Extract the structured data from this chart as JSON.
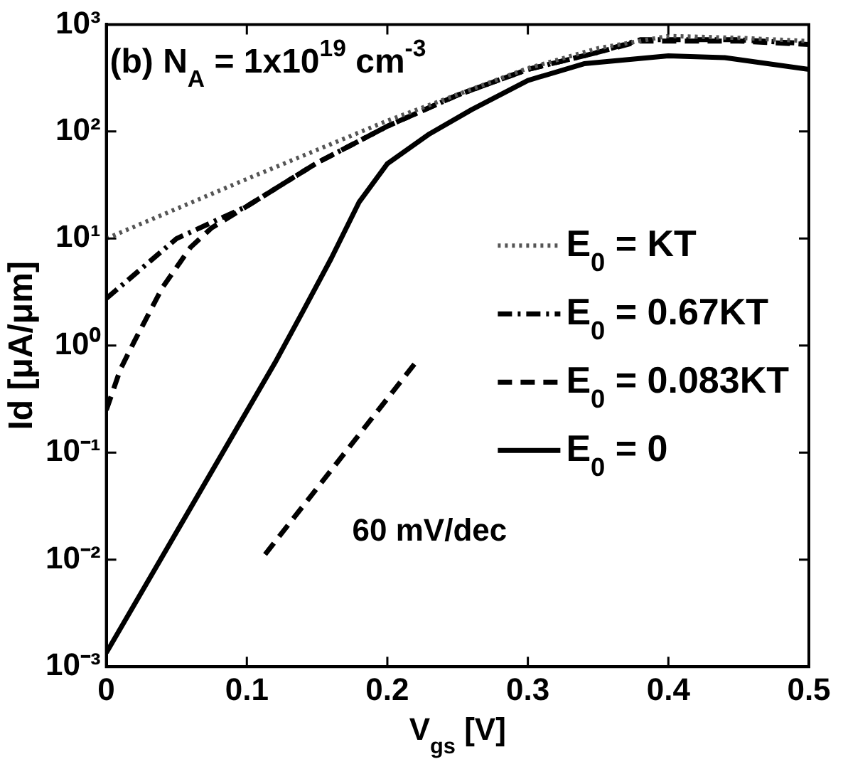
{
  "chart_data": {
    "type": "line",
    "xlabel": "V$_{gs}$ [V]",
    "ylabel": "Id [μA/μm]",
    "xlim": [
      0,
      0.5
    ],
    "xticks": [
      0,
      0.1,
      0.2,
      0.3,
      0.4,
      0.5
    ],
    "ylim": [
      0.001,
      1000
    ],
    "yticks": [
      {
        "value": 0.001,
        "label": "10⁻³"
      },
      {
        "value": 0.01,
        "label": "10⁻²"
      },
      {
        "value": 0.1,
        "label": "10⁻¹"
      },
      {
        "value": 1,
        "label": "10⁰"
      },
      {
        "value": 10,
        "label": "10¹"
      },
      {
        "value": 100,
        "label": "10²"
      },
      {
        "value": 1000,
        "label": "10³"
      }
    ],
    "log": "y",
    "grid": false,
    "legend": "right",
    "marker": "none",
    "annotations": [
      "(b) N$_{A}$ = 1x10$^{19}$ cm$^{-3}$",
      "60 mV/dec"
    ],
    "series": [
      {
        "name": "E$_{0}$ = KT",
        "color": "#555555",
        "line_style": "dotted",
        "x": [
          0,
          0.1,
          0.2,
          0.3,
          0.35,
          0.4,
          0.45,
          0.5
        ],
        "values": [
          10,
          36,
          126,
          390,
          600,
          780,
          750,
          700
        ]
      },
      {
        "name": "E$_{0}$ = 0.67KT",
        "color": "#000000",
        "line_style": "dashdot",
        "x": [
          0,
          0.05,
          0.1,
          0.15,
          0.2,
          0.25,
          0.3,
          0.35,
          0.38,
          0.4,
          0.45,
          0.5
        ],
        "values": [
          2.75,
          10,
          20,
          51,
          112,
          219,
          380,
          550,
          720,
          720,
          720,
          660
        ]
      },
      {
        "name": "E$_{0}$ = 0.083KT",
        "color": "#000000",
        "line_style": "dashed",
        "x": [
          0,
          0.01,
          0.02,
          0.04,
          0.06,
          0.075,
          0.1,
          0.15,
          0.2,
          0.25,
          0.3,
          0.35,
          0.38,
          0.4,
          0.45,
          0.5
        ],
        "values": [
          0.25,
          0.6,
          1.1,
          3.5,
          8.3,
          12.6,
          20,
          51,
          112,
          219,
          380,
          550,
          700,
          700,
          700,
          650
        ]
      },
      {
        "name": "E$_{0}$ = 0",
        "color": "#000000",
        "line_style": "solid",
        "x": [
          0,
          0.12,
          0.14,
          0.16,
          0.18,
          0.2,
          0.23,
          0.26,
          0.3,
          0.34,
          0.4,
          0.44,
          0.5
        ],
        "values": [
          0.00135,
          0.69,
          2.1,
          6.5,
          22,
          50,
          95,
          160,
          300,
          430,
          510,
          490,
          380
        ]
      },
      {
        "color": "#000000",
        "line_style": "dashed",
        "x": [
          0.113,
          0.22
        ],
        "values": [
          0.0112,
          0.69
        ]
      }
    ]
  }
}
